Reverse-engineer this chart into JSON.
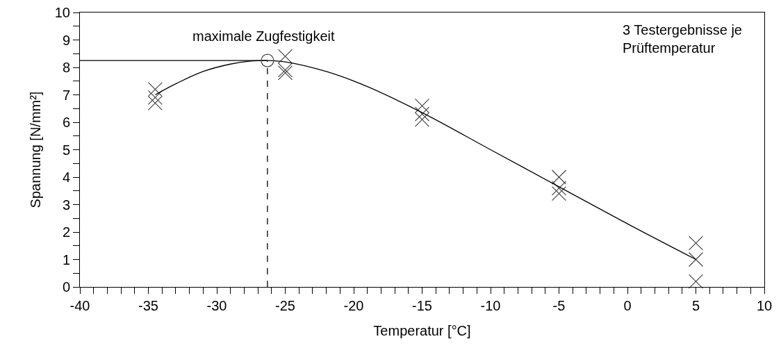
{
  "chart_data": {
    "type": "scatter",
    "xlabel": "Temperatur [°C]",
    "ylabel": "Spannung [N/mm²]",
    "xlim": [
      -40,
      10
    ],
    "ylim": [
      0,
      10
    ],
    "xticks": [
      -40,
      {
        "value": -39,
        "label": null
      },
      {
        "value": -38,
        "label": null
      },
      {
        "value": -37,
        "label": null
      },
      {
        "value": -36,
        "label": null
      },
      -35,
      {
        "value": -34,
        "label": null
      },
      {
        "value": -33,
        "label": null
      },
      {
        "value": -32,
        "label": null
      },
      {
        "value": -31,
        "label": null
      },
      -30,
      {
        "value": -29,
        "label": null
      },
      {
        "value": -28,
        "label": null
      },
      {
        "value": -27,
        "label": null
      },
      {
        "value": -26,
        "label": null
      },
      -25,
      {
        "value": -24,
        "label": null
      },
      {
        "value": -23,
        "label": null
      },
      {
        "value": -22,
        "label": null
      },
      {
        "value": -21,
        "label": null
      },
      -20,
      {
        "value": -19,
        "label": null
      },
      {
        "value": -18,
        "label": null
      },
      {
        "value": -17,
        "label": null
      },
      {
        "value": -16,
        "label": null
      },
      -15,
      {
        "value": -14,
        "label": null
      },
      {
        "value": -13,
        "label": null
      },
      {
        "value": -12,
        "label": null
      },
      {
        "value": -11,
        "label": null
      },
      -10,
      {
        "value": -9,
        "label": null
      },
      {
        "value": -8,
        "label": null
      },
      {
        "value": -7,
        "label": null
      },
      {
        "value": -6,
        "label": null
      },
      -5,
      {
        "value": -4,
        "label": null
      },
      {
        "value": -3,
        "label": null
      },
      {
        "value": -2,
        "label": null
      },
      {
        "value": -1,
        "label": null
      },
      0,
      {
        "value": 1,
        "label": null
      },
      {
        "value": 2,
        "label": null
      },
      {
        "value": 3,
        "label": null
      },
      {
        "value": 4,
        "label": null
      },
      5,
      {
        "value": 6,
        "label": null
      },
      {
        "value": 7,
        "label": null
      },
      {
        "value": 8,
        "label": null
      },
      {
        "value": 9,
        "label": null
      },
      10
    ],
    "yticks": [
      0,
      {
        "value": 0.5,
        "label": null
      },
      1,
      {
        "value": 1.5,
        "label": null
      },
      2,
      {
        "value": 2.5,
        "label": null
      },
      3,
      {
        "value": 3.5,
        "label": null
      },
      4,
      {
        "value": 4.5,
        "label": null
      },
      5,
      {
        "value": 5.5,
        "label": null
      },
      6,
      {
        "value": 6.5,
        "label": null
      },
      7,
      {
        "value": 7.5,
        "label": null
      },
      8,
      {
        "value": 8.5,
        "label": null
      },
      9,
      {
        "value": 9.5,
        "label": null
      },
      10
    ],
    "grid": false,
    "series": [
      {
        "marker": "cross",
        "color": "#444444",
        "x": [
          -34.5,
          -34.5,
          -34.5,
          -25,
          -25,
          -25,
          -15,
          -15,
          -15,
          -5,
          -5,
          -5,
          5,
          5,
          5
        ],
        "values": [
          7.2,
          6.9,
          6.7,
          8.4,
          7.9,
          7.8,
          6.6,
          6.3,
          6.1,
          4.0,
          3.6,
          3.4,
          1.6,
          1.0,
          0.2
        ]
      },
      {
        "type": "line",
        "marker": "none",
        "line_style": "solid",
        "color": "#000000",
        "x": [
          -34.5,
          -33,
          -31,
          -29,
          -27.5,
          -26.3,
          -25,
          -22,
          -19,
          -15,
          -10,
          -5,
          0,
          5
        ],
        "values": [
          7.0,
          7.4,
          7.85,
          8.12,
          8.23,
          8.25,
          8.2,
          7.85,
          7.3,
          6.35,
          5.0,
          3.65,
          2.3,
          1.0
        ]
      },
      {
        "type": "line",
        "marker": "none",
        "line_style": "solid",
        "color": "#000000",
        "x": [
          -40,
          -26.3
        ],
        "values": [
          8.25,
          8.25
        ]
      },
      {
        "type": "line",
        "marker": "none",
        "line_style": "dashed",
        "color": "#000000",
        "x": [
          -26.3,
          -26.3
        ],
        "values": [
          0,
          8.25
        ]
      },
      {
        "marker": "circle",
        "color": "#444444",
        "x": [
          -26.3
        ],
        "values": [
          8.25
        ]
      }
    ],
    "annotations": [
      {
        "text": "maximale Zugfestigkeit",
        "x": -26.3,
        "y": 8.25
      },
      "3 Testergebnisse je\nPrüftemperatur"
    ]
  }
}
